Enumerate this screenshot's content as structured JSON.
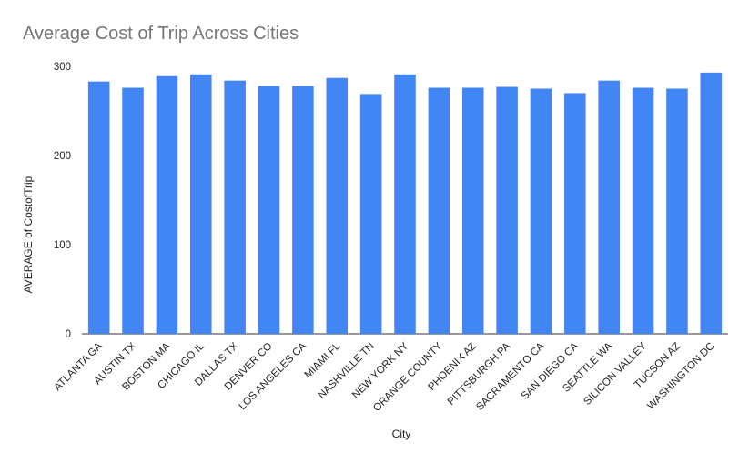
{
  "chart_data": {
    "type": "bar",
    "title": "Average Cost of Trip Across Cities",
    "xlabel": "City",
    "ylabel": "AVERAGE of CostofTrip",
    "ylim": [
      0,
      300
    ],
    "yticks": [
      0,
      100,
      200,
      300
    ],
    "grid": false,
    "legend": "none",
    "categories": [
      "ATLANTA GA",
      "AUSTIN TX",
      "BOSTON MA",
      "CHICAGO IL",
      "DALLAS TX",
      "DENVER CO",
      "LOS ANGELES CA",
      "MIAMI FL",
      "NASHVILLE TN",
      "NEW YORK NY",
      "ORANGE COUNTY",
      "PHOENIX AZ",
      "PITTSBURGH PA",
      "SACRAMENTO CA",
      "SAN DIEGO CA",
      "SEATTLE WA",
      "SILICON VALLEY",
      "TUCSON AZ",
      "WASHINGTON DC"
    ],
    "series": [
      {
        "values": [
          283,
          276,
          289,
          291,
          284,
          278,
          278,
          287,
          269,
          291,
          276,
          276,
          277,
          275,
          270,
          284,
          276,
          275,
          293
        ],
        "color": "#4285f4"
      }
    ]
  }
}
